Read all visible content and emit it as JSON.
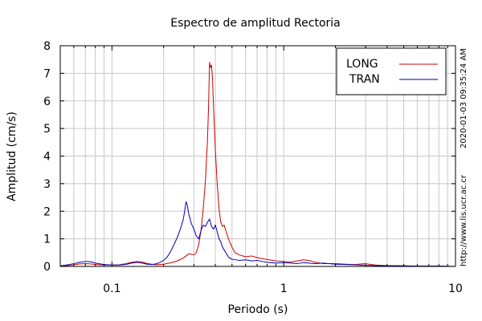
{
  "chart_data": {
    "type": "line",
    "title": "Espectro de amplitud Rectoria",
    "xlabel": "Periodo (s)",
    "ylabel": "Amplitud (cm/s)",
    "xscale": "log",
    "xlim": [
      0.05,
      10
    ],
    "ylim": [
      0,
      8
    ],
    "x_ticks": [
      {
        "value": 0.1,
        "label": "0.1"
      },
      {
        "value": 1,
        "label": "1"
      },
      {
        "value": 10,
        "label": "10"
      }
    ],
    "y_ticks": [
      {
        "value": 0,
        "label": "0"
      },
      {
        "value": 1,
        "label": "1"
      },
      {
        "value": 2,
        "label": "2"
      },
      {
        "value": 3,
        "label": "3"
      },
      {
        "value": 4,
        "label": "4"
      },
      {
        "value": 5,
        "label": "5"
      },
      {
        "value": 6,
        "label": "6"
      },
      {
        "value": 7,
        "label": "7"
      },
      {
        "value": 8,
        "label": "8"
      }
    ],
    "grid": true,
    "legend_position": "top-right",
    "series": [
      {
        "name": "LONG",
        "color": "#cc0000",
        "points": [
          [
            0.05,
            0.01
          ],
          [
            0.055,
            0.03
          ],
          [
            0.06,
            0.06
          ],
          [
            0.065,
            0.09
          ],
          [
            0.07,
            0.1
          ],
          [
            0.075,
            0.09
          ],
          [
            0.08,
            0.07
          ],
          [
            0.09,
            0.05
          ],
          [
            0.1,
            0.05
          ],
          [
            0.11,
            0.06
          ],
          [
            0.12,
            0.1
          ],
          [
            0.13,
            0.15
          ],
          [
            0.14,
            0.18
          ],
          [
            0.15,
            0.16
          ],
          [
            0.16,
            0.11
          ],
          [
            0.17,
            0.08
          ],
          [
            0.18,
            0.06
          ],
          [
            0.2,
            0.08
          ],
          [
            0.22,
            0.13
          ],
          [
            0.24,
            0.2
          ],
          [
            0.26,
            0.3
          ],
          [
            0.27,
            0.38
          ],
          [
            0.28,
            0.46
          ],
          [
            0.29,
            0.44
          ],
          [
            0.3,
            0.42
          ],
          [
            0.31,
            0.5
          ],
          [
            0.32,
            0.8
          ],
          [
            0.33,
            1.3
          ],
          [
            0.34,
            2.1
          ],
          [
            0.35,
            3.1
          ],
          [
            0.36,
            4.6
          ],
          [
            0.365,
            5.8
          ],
          [
            0.37,
            7.4
          ],
          [
            0.375,
            7.2
          ],
          [
            0.38,
            7.3
          ],
          [
            0.385,
            6.8
          ],
          [
            0.39,
            5.8
          ],
          [
            0.4,
            4.2
          ],
          [
            0.41,
            3.0
          ],
          [
            0.42,
            2.1
          ],
          [
            0.43,
            1.6
          ],
          [
            0.44,
            1.45
          ],
          [
            0.45,
            1.5
          ],
          [
            0.46,
            1.3
          ],
          [
            0.48,
            0.95
          ],
          [
            0.5,
            0.7
          ],
          [
            0.52,
            0.5
          ],
          [
            0.55,
            0.42
          ],
          [
            0.6,
            0.35
          ],
          [
            0.65,
            0.38
          ],
          [
            0.7,
            0.32
          ],
          [
            0.75,
            0.28
          ],
          [
            0.8,
            0.25
          ],
          [
            0.9,
            0.2
          ],
          [
            1.0,
            0.18
          ],
          [
            1.1,
            0.16
          ],
          [
            1.2,
            0.2
          ],
          [
            1.3,
            0.24
          ],
          [
            1.4,
            0.22
          ],
          [
            1.5,
            0.16
          ],
          [
            1.7,
            0.1
          ],
          [
            2.0,
            0.1
          ],
          [
            2.3,
            0.08
          ],
          [
            2.6,
            0.07
          ],
          [
            3.0,
            0.1
          ],
          [
            3.4,
            0.05
          ],
          [
            4.0,
            0.03
          ],
          [
            5.0,
            0.02
          ],
          [
            6.0,
            0.01
          ],
          [
            8.0,
            0.01
          ],
          [
            10.0,
            0.0
          ]
        ]
      },
      {
        "name": "TRAN",
        "color": "#0000aa",
        "points": [
          [
            0.05,
            0.02
          ],
          [
            0.055,
            0.06
          ],
          [
            0.06,
            0.1
          ],
          [
            0.065,
            0.15
          ],
          [
            0.07,
            0.18
          ],
          [
            0.075,
            0.17
          ],
          [
            0.08,
            0.12
          ],
          [
            0.09,
            0.07
          ],
          [
            0.1,
            0.05
          ],
          [
            0.11,
            0.05
          ],
          [
            0.12,
            0.07
          ],
          [
            0.13,
            0.12
          ],
          [
            0.14,
            0.15
          ],
          [
            0.15,
            0.12
          ],
          [
            0.16,
            0.08
          ],
          [
            0.17,
            0.07
          ],
          [
            0.18,
            0.09
          ],
          [
            0.19,
            0.14
          ],
          [
            0.2,
            0.22
          ],
          [
            0.21,
            0.35
          ],
          [
            0.22,
            0.55
          ],
          [
            0.23,
            0.8
          ],
          [
            0.24,
            1.05
          ],
          [
            0.25,
            1.35
          ],
          [
            0.26,
            1.7
          ],
          [
            0.265,
            2.0
          ],
          [
            0.27,
            2.35
          ],
          [
            0.275,
            2.2
          ],
          [
            0.28,
            1.9
          ],
          [
            0.29,
            1.55
          ],
          [
            0.3,
            1.35
          ],
          [
            0.31,
            1.1
          ],
          [
            0.32,
            1.0
          ],
          [
            0.33,
            1.3
          ],
          [
            0.34,
            1.5
          ],
          [
            0.35,
            1.45
          ],
          [
            0.36,
            1.6
          ],
          [
            0.37,
            1.72
          ],
          [
            0.38,
            1.45
          ],
          [
            0.39,
            1.35
          ],
          [
            0.4,
            1.5
          ],
          [
            0.41,
            1.25
          ],
          [
            0.42,
            1.0
          ],
          [
            0.43,
            0.9
          ],
          [
            0.44,
            0.7
          ],
          [
            0.46,
            0.5
          ],
          [
            0.48,
            0.32
          ],
          [
            0.5,
            0.26
          ],
          [
            0.55,
            0.22
          ],
          [
            0.6,
            0.24
          ],
          [
            0.65,
            0.2
          ],
          [
            0.7,
            0.22
          ],
          [
            0.75,
            0.18
          ],
          [
            0.8,
            0.15
          ],
          [
            0.9,
            0.12
          ],
          [
            1.0,
            0.14
          ],
          [
            1.1,
            0.12
          ],
          [
            1.2,
            0.1
          ],
          [
            1.3,
            0.14
          ],
          [
            1.4,
            0.12
          ],
          [
            1.5,
            0.1
          ],
          [
            1.7,
            0.12
          ],
          [
            2.0,
            0.08
          ],
          [
            2.3,
            0.07
          ],
          [
            2.6,
            0.06
          ],
          [
            3.0,
            0.04
          ],
          [
            3.5,
            0.03
          ],
          [
            4.0,
            0.02
          ],
          [
            5.0,
            0.02
          ],
          [
            6.0,
            0.01
          ],
          [
            8.0,
            0.01
          ],
          [
            10.0,
            0.0
          ]
        ]
      }
    ]
  },
  "side_texts": {
    "timestamp": "2020-01-03 09:35:24 AM",
    "url": "http://www.lis.ucr.ac.cr"
  }
}
